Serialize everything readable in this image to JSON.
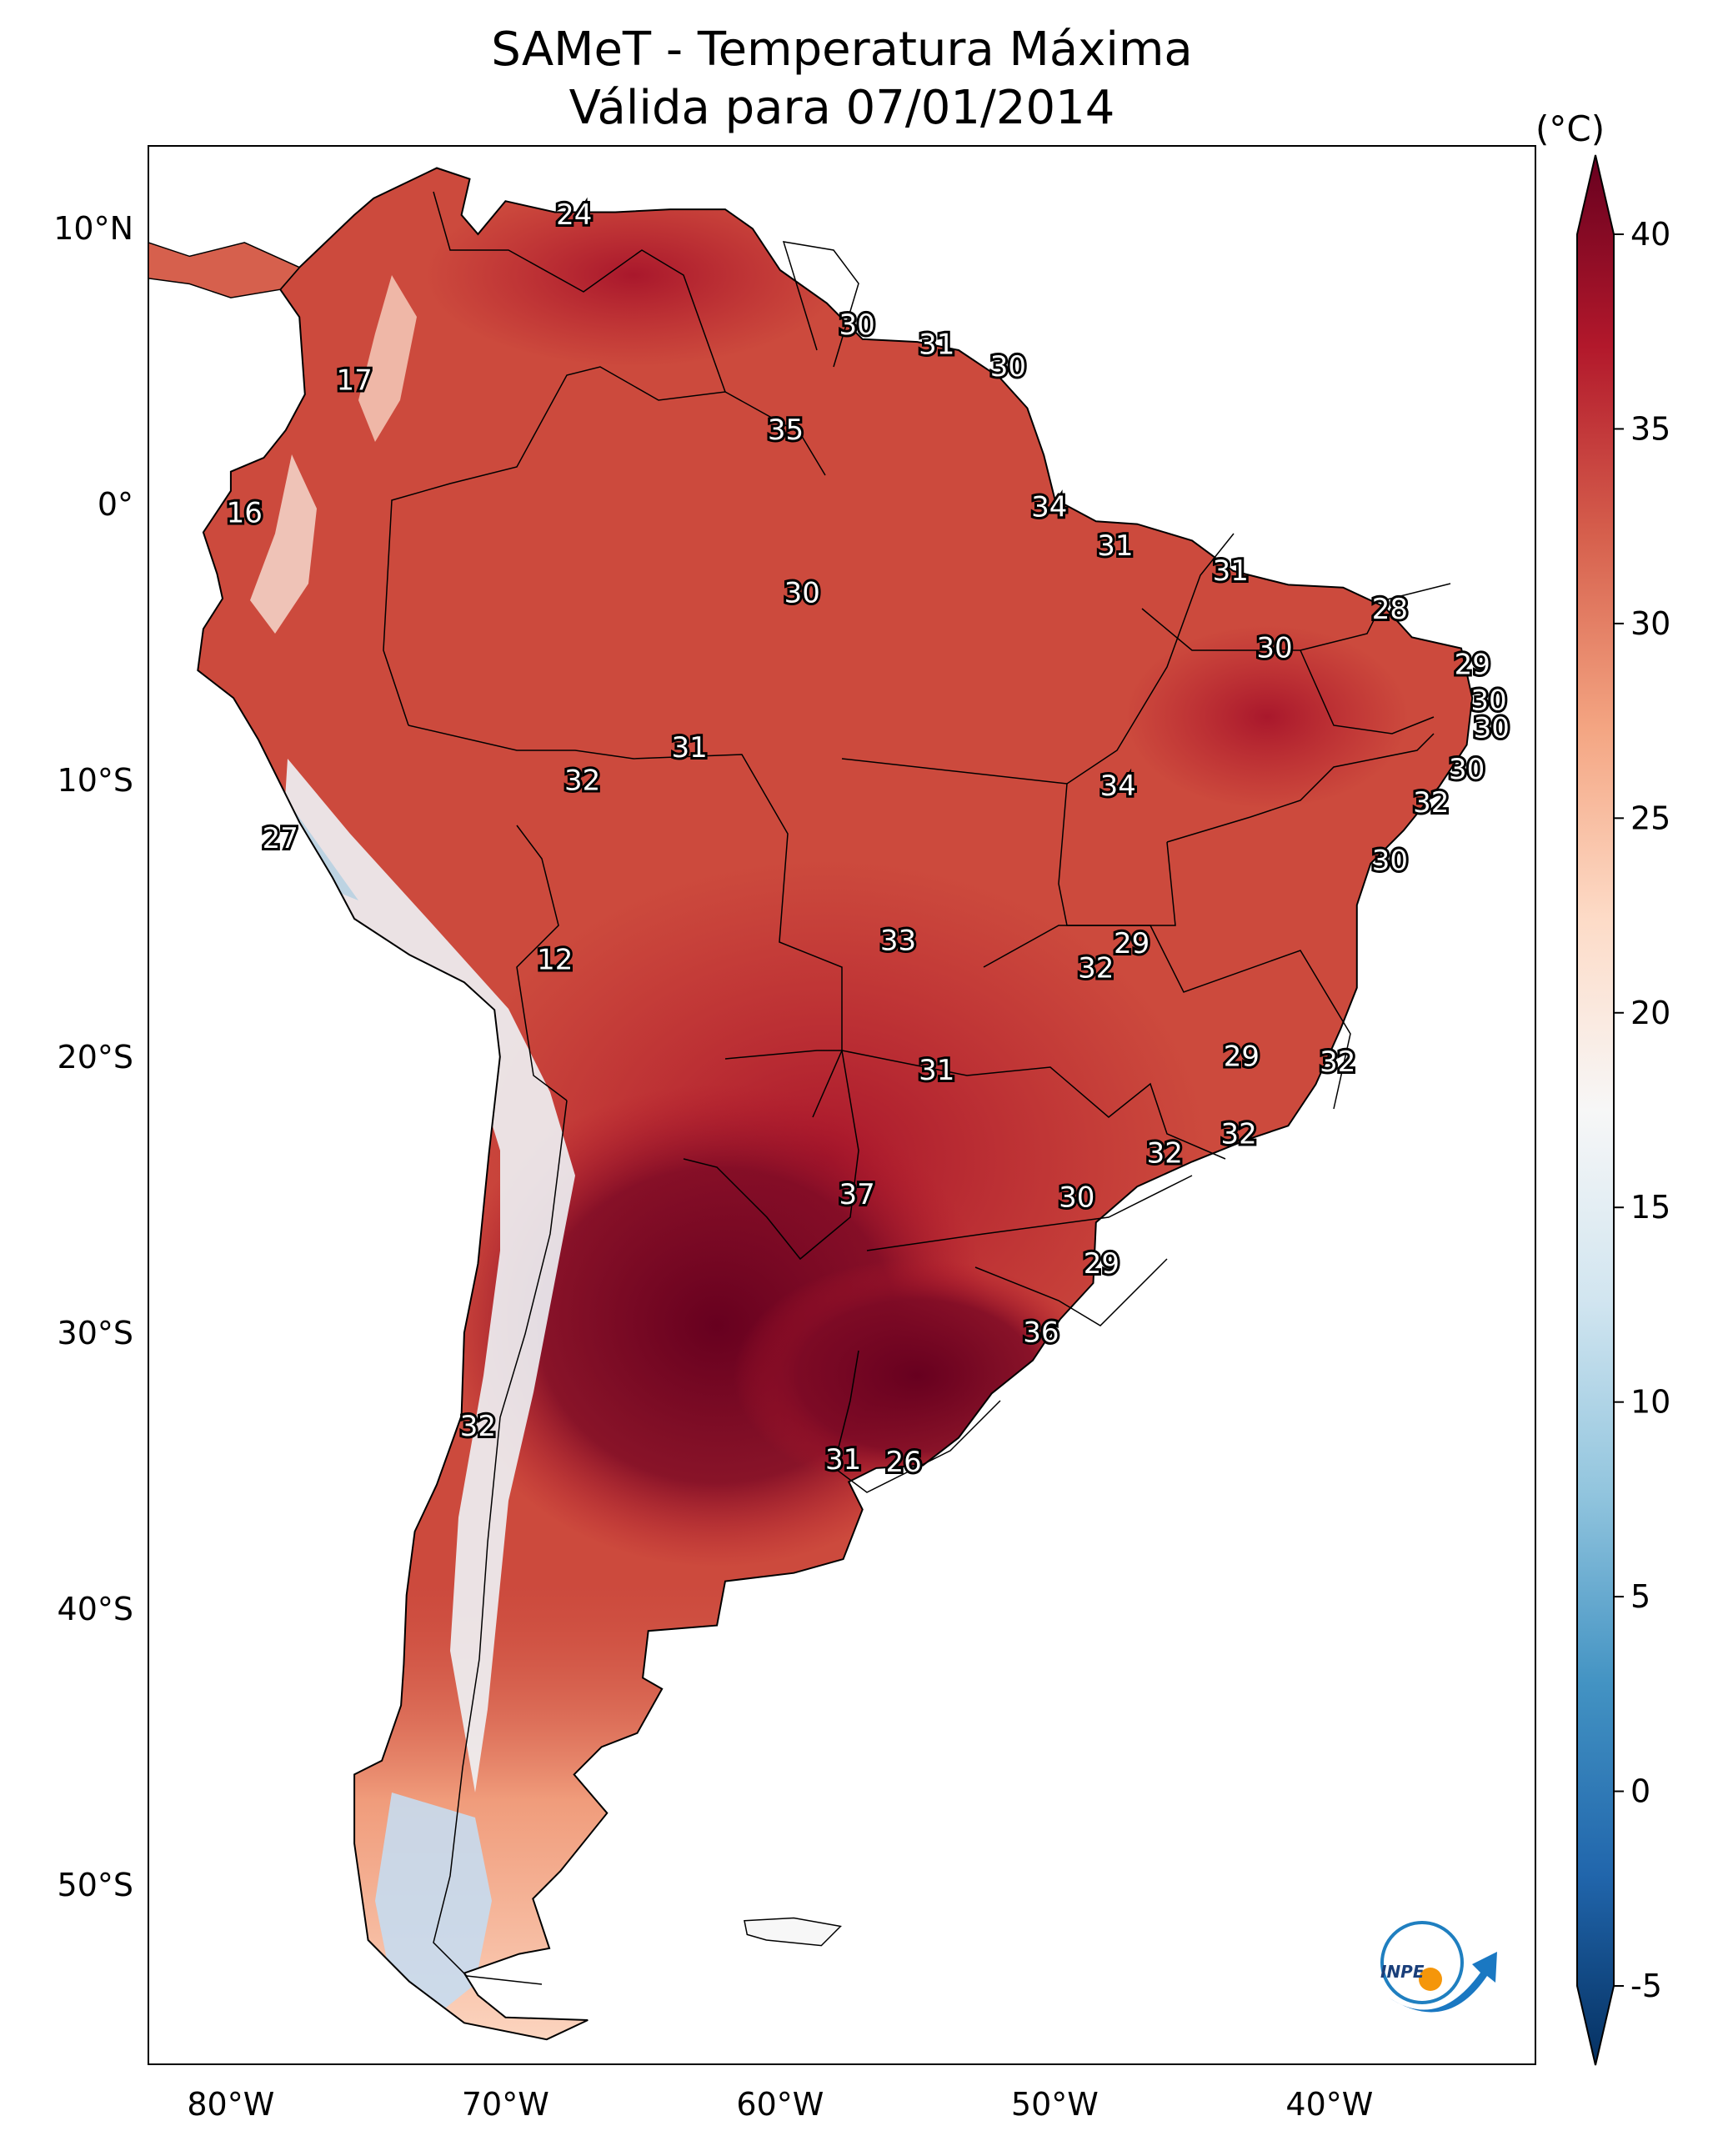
{
  "title": {
    "line1": "SAMeT - Temperatura Máxima",
    "line2": "Válida para 07/01/2014"
  },
  "lat_ticks": [
    "10°N",
    "0°",
    "10°S",
    "20°S",
    "30°S",
    "40°S",
    "50°S"
  ],
  "lon_ticks": [
    "80°W",
    "70°W",
    "60°W",
    "50°W",
    "40°W"
  ],
  "colorbar": {
    "unit": "(°C)",
    "min": -7,
    "max": 42,
    "ticks": [
      "40",
      "35",
      "30",
      "25",
      "20",
      "15",
      "10",
      "5",
      "0",
      "-5"
    ],
    "colors": [
      "#053061",
      "#2166ac",
      "#4393c3",
      "#92c5de",
      "#d1e5f0",
      "#f7f7f7",
      "#fddbc7",
      "#f4a582",
      "#d6604d",
      "#b2182b",
      "#67001f"
    ]
  },
  "labels": [
    {
      "text": "24",
      "lon": -67.5,
      "lat": 10.5
    },
    {
      "text": "17",
      "lon": -75.5,
      "lat": 4.5
    },
    {
      "text": "16",
      "lon": -79.5,
      "lat": -0.3
    },
    {
      "text": "30",
      "lon": -57.2,
      "lat": 6.5
    },
    {
      "text": "31",
      "lon": -54.3,
      "lat": 5.8
    },
    {
      "text": "30",
      "lon": -51.7,
      "lat": 5.0
    },
    {
      "text": "35",
      "lon": -59.8,
      "lat": 2.7
    },
    {
      "text": "34",
      "lon": -50.2,
      "lat": -0.1
    },
    {
      "text": "31",
      "lon": -47.8,
      "lat": -1.5
    },
    {
      "text": "31",
      "lon": -43.6,
      "lat": -2.4
    },
    {
      "text": "30",
      "lon": -59.2,
      "lat": -3.2
    },
    {
      "text": "28",
      "lon": -37.8,
      "lat": -3.8
    },
    {
      "text": "30",
      "lon": -42.0,
      "lat": -5.2
    },
    {
      "text": "29",
      "lon": -34.8,
      "lat": -5.8
    },
    {
      "text": "30",
      "lon": -34.2,
      "lat": -7.1
    },
    {
      "text": "30",
      "lon": -34.1,
      "lat": -8.1
    },
    {
      "text": "30",
      "lon": -35.0,
      "lat": -9.6
    },
    {
      "text": "32",
      "lon": -36.3,
      "lat": -10.8
    },
    {
      "text": "31",
      "lon": -63.3,
      "lat": -8.8
    },
    {
      "text": "32",
      "lon": -67.2,
      "lat": -10.0
    },
    {
      "text": "34",
      "lon": -47.7,
      "lat": -10.2
    },
    {
      "text": "27",
      "lon": -78.2,
      "lat": -12.1
    },
    {
      "text": "30",
      "lon": -37.8,
      "lat": -12.9
    },
    {
      "text": "12",
      "lon": -68.2,
      "lat": -16.5
    },
    {
      "text": "33",
      "lon": -55.7,
      "lat": -15.8
    },
    {
      "text": "29",
      "lon": -47.2,
      "lat": -15.9
    },
    {
      "text": "32",
      "lon": -48.5,
      "lat": -16.8
    },
    {
      "text": "29",
      "lon": -43.2,
      "lat": -20.0
    },
    {
      "text": "32",
      "lon": -39.7,
      "lat": -20.2
    },
    {
      "text": "31",
      "lon": -54.3,
      "lat": -20.5
    },
    {
      "text": "32",
      "lon": -43.3,
      "lat": -22.8
    },
    {
      "text": "32",
      "lon": -46.0,
      "lat": -23.5
    },
    {
      "text": "37",
      "lon": -57.2,
      "lat": -25.0
    },
    {
      "text": "30",
      "lon": -49.2,
      "lat": -25.1
    },
    {
      "text": "29",
      "lon": -48.3,
      "lat": -27.5
    },
    {
      "text": "36",
      "lon": -50.5,
      "lat": -30.0
    },
    {
      "text": "32",
      "lon": -71.0,
      "lat": -33.4
    },
    {
      "text": "31",
      "lon": -57.7,
      "lat": -34.6
    },
    {
      "text": "26",
      "lon": -55.5,
      "lat": -34.7
    }
  ]
}
